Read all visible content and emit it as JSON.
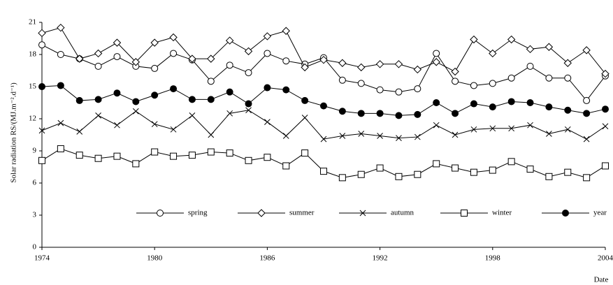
{
  "chart_data": {
    "type": "line",
    "y_label": "Solar radiation  RS/(MJ.m⁻².d⁻¹)",
    "x_label": "Date",
    "x": [
      1974,
      1975,
      1976,
      1977,
      1978,
      1979,
      1980,
      1981,
      1982,
      1983,
      1984,
      1985,
      1986,
      1987,
      1988,
      1989,
      1990,
      1991,
      1992,
      1993,
      1994,
      1995,
      1996,
      1997,
      1998,
      1999,
      2000,
      2001,
      2002,
      2003,
      2004
    ],
    "xlim": [
      1974,
      2004
    ],
    "xticks": [
      1974,
      1980,
      1986,
      1992,
      1998,
      2004
    ],
    "ylim": [
      0,
      21
    ],
    "yticks": [
      0,
      3,
      6,
      9,
      12,
      15,
      18,
      21
    ],
    "legend": "bottom",
    "series": [
      {
        "name": "spring",
        "color": "#000000",
        "marker": "circle",
        "values": [
          18.9,
          18.0,
          17.6,
          16.9,
          17.8,
          16.9,
          16.7,
          18.1,
          17.5,
          15.5,
          17.0,
          16.3,
          18.1,
          17.4,
          17.1,
          17.7,
          15.6,
          15.3,
          14.7,
          14.5,
          14.8,
          18.1,
          15.5,
          15.1,
          15.3,
          15.8,
          16.9,
          15.8,
          15.8,
          13.7,
          16.0
        ]
      },
      {
        "name": "summer",
        "color": "#000000",
        "marker": "diamond",
        "values": [
          20.0,
          20.5,
          17.6,
          18.1,
          19.1,
          17.3,
          19.1,
          19.6,
          17.6,
          17.6,
          19.3,
          18.3,
          19.7,
          20.2,
          16.8,
          17.5,
          17.2,
          16.8,
          17.1,
          17.1,
          16.6,
          17.3,
          16.4,
          19.4,
          18.1,
          19.4,
          18.5,
          18.7,
          17.2,
          18.4,
          16.2
        ]
      },
      {
        "name": "autumn",
        "color": "#000000",
        "marker": "cross",
        "values": [
          10.9,
          11.6,
          10.8,
          12.3,
          11.4,
          12.7,
          11.5,
          11.0,
          12.3,
          10.5,
          12.5,
          12.8,
          11.7,
          10.4,
          12.1,
          10.1,
          10.4,
          10.6,
          10.4,
          10.2,
          10.3,
          11.4,
          10.5,
          11.0,
          11.1,
          11.1,
          11.4,
          10.6,
          11.0,
          10.1,
          11.3
        ]
      },
      {
        "name": "winter",
        "color": "#000000",
        "marker": "square",
        "values": [
          8.1,
          9.2,
          8.6,
          8.3,
          8.5,
          7.8,
          8.9,
          8.5,
          8.6,
          8.9,
          8.8,
          8.1,
          8.4,
          7.6,
          8.8,
          7.1,
          6.5,
          6.8,
          7.4,
          6.6,
          6.8,
          7.8,
          7.4,
          7.0,
          7.2,
          8.0,
          7.3,
          6.6,
          7.0,
          6.5,
          7.6
        ]
      },
      {
        "name": "year",
        "color": "#000000",
        "marker": "dot",
        "values": [
          15.0,
          15.1,
          13.7,
          13.8,
          14.4,
          13.6,
          14.2,
          14.8,
          13.8,
          13.8,
          14.5,
          13.4,
          14.9,
          14.7,
          13.7,
          13.2,
          12.7,
          12.5,
          12.5,
          12.3,
          12.4,
          13.5,
          12.5,
          13.4,
          13.1,
          13.6,
          13.5,
          13.1,
          12.8,
          12.5,
          12.9
        ]
      }
    ]
  }
}
